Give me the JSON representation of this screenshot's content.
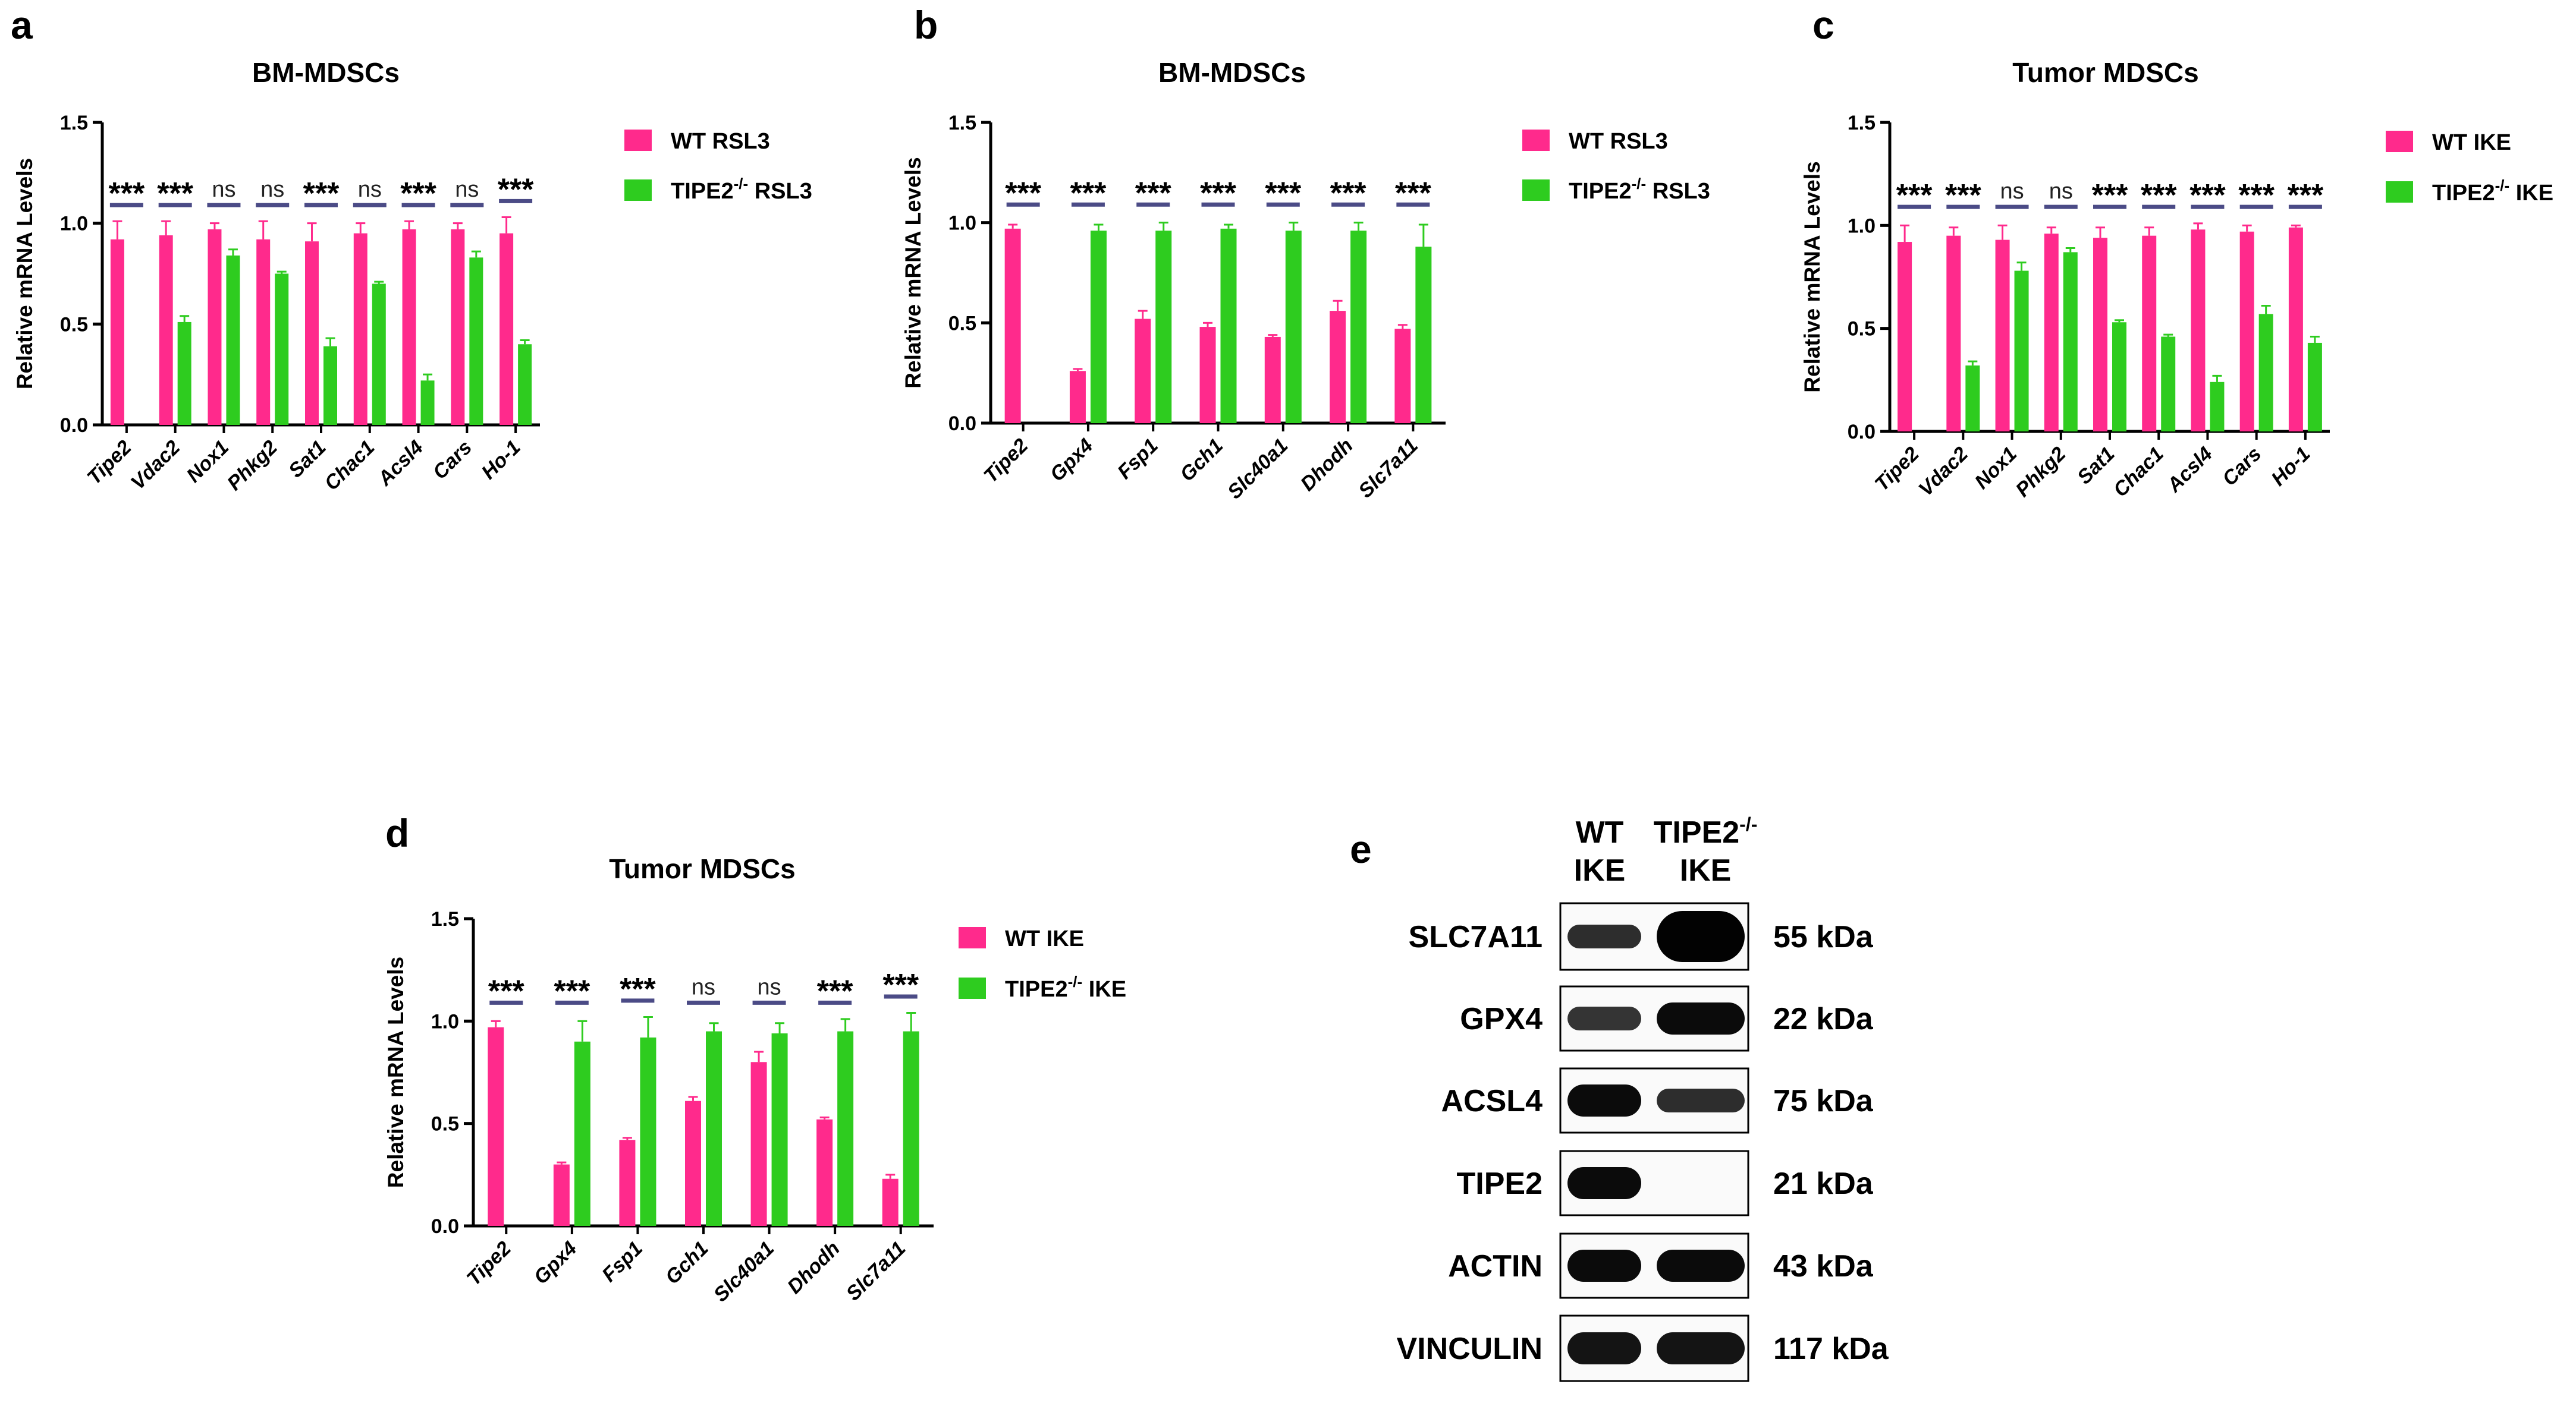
{
  "colors": {
    "wt": "#ff2a8c",
    "ko": "#2ecc1f",
    "sigline": "#4b4b86",
    "axis": "#000000"
  },
  "chart_data": [
    {
      "panel": "a",
      "type": "bar",
      "title": "BM-MDSCs",
      "ylabel": "Relative mRNA Levels",
      "ylim": [
        0,
        1.5
      ],
      "yticks": [
        "0.0",
        "0.5",
        "1.0",
        "1.5"
      ],
      "categories": [
        "Tipe2",
        "Vdac2",
        "Nox1",
        "Phkg2",
        "Sat1",
        "Chac1",
        "Acsl4",
        "Cars",
        "Ho-1"
      ],
      "series": [
        {
          "name": "WT RSL3",
          "label_main": "WT RSL3",
          "values": [
            0.92,
            0.94,
            0.97,
            0.92,
            0.91,
            0.95,
            0.97,
            0.97,
            0.95
          ],
          "errors": [
            0.09,
            0.07,
            0.03,
            0.09,
            0.09,
            0.05,
            0.04,
            0.03,
            0.08
          ]
        },
        {
          "name": "TIPE2-/- RSL3",
          "label_main": "TIPE2",
          "label_sup": "-/-",
          "label_tail": " RSL3",
          "values": [
            0.0,
            0.51,
            0.84,
            0.75,
            0.39,
            0.7,
            0.22,
            0.83,
            0.4
          ],
          "errors": [
            0.0,
            0.03,
            0.03,
            0.01,
            0.04,
            0.01,
            0.03,
            0.03,
            0.02
          ]
        }
      ],
      "significance": [
        "***",
        "***",
        "ns",
        "ns",
        "***",
        "ns",
        "***",
        "ns",
        "***"
      ]
    },
    {
      "panel": "b",
      "type": "bar",
      "title": "BM-MDSCs",
      "ylabel": "Relative mRNA Levels",
      "ylim": [
        0,
        1.5
      ],
      "yticks": [
        "0.0",
        "0.5",
        "1.0",
        "1.5"
      ],
      "categories": [
        "Tipe2",
        "Gpx4",
        "Fsp1",
        "Gch1",
        "Slc40a1",
        "Dhodh",
        "Slc7a11"
      ],
      "series": [
        {
          "name": "WT RSL3",
          "label_main": "WT RSL3",
          "values": [
            0.97,
            0.26,
            0.52,
            0.48,
            0.43,
            0.56,
            0.47
          ],
          "errors": [
            0.02,
            0.01,
            0.04,
            0.02,
            0.01,
            0.05,
            0.02
          ]
        },
        {
          "name": "TIPE2-/- RSL3",
          "label_main": "TIPE2",
          "label_sup": "-/-",
          "label_tail": " RSL3",
          "values": [
            0.0,
            0.96,
            0.96,
            0.97,
            0.96,
            0.96,
            0.88
          ],
          "errors": [
            0.0,
            0.03,
            0.04,
            0.02,
            0.04,
            0.04,
            0.11
          ]
        }
      ],
      "significance": [
        "***",
        "***",
        "***",
        "***",
        "***",
        "***",
        "***"
      ]
    },
    {
      "panel": "c",
      "type": "bar",
      "title": "Tumor MDSCs",
      "ylabel": "Relative mRNA Levels",
      "ylim": [
        0,
        1.5
      ],
      "yticks": [
        "0.0",
        "0.5",
        "1.0",
        "1.5"
      ],
      "categories": [
        "Tipe2",
        "Vdac2",
        "Nox1",
        "Phkg2",
        "Sat1",
        "Chac1",
        "Acsl4",
        "Cars",
        "Ho-1"
      ],
      "series": [
        {
          "name": "WT IKE",
          "label_main": "WT IKE",
          "values": [
            0.92,
            0.95,
            0.93,
            0.96,
            0.94,
            0.95,
            0.98,
            0.97,
            0.99
          ],
          "errors": [
            0.08,
            0.04,
            0.07,
            0.03,
            0.05,
            0.04,
            0.03,
            0.03,
            0.01
          ]
        },
        {
          "name": "TIPE2-/- IKE",
          "label_main": "TIPE2",
          "label_sup": "-/-",
          "label_tail": " IKE",
          "values": [
            0.0,
            0.32,
            0.78,
            0.87,
            0.53,
            0.46,
            0.24,
            0.57,
            0.43
          ],
          "errors": [
            0.0,
            0.02,
            0.04,
            0.02,
            0.01,
            0.01,
            0.03,
            0.04,
            0.03
          ]
        }
      ],
      "significance": [
        "***",
        "***",
        "ns",
        "ns",
        "***",
        "***",
        "***",
        "***",
        "***"
      ]
    },
    {
      "panel": "d",
      "type": "bar",
      "title": "Tumor MDSCs",
      "ylabel": "Relative mRNA Levels",
      "ylim": [
        0,
        1.5
      ],
      "yticks": [
        "0.0",
        "0.5",
        "1.0",
        "1.5"
      ],
      "categories": [
        "Tipe2",
        "Gpx4",
        "Fsp1",
        "Gch1",
        "Slc40a1",
        "Dhodh",
        "Slc7a11"
      ],
      "series": [
        {
          "name": "WT IKE",
          "label_main": "WT IKE",
          "values": [
            0.97,
            0.3,
            0.42,
            0.61,
            0.8,
            0.52,
            0.23
          ],
          "errors": [
            0.03,
            0.01,
            0.01,
            0.02,
            0.05,
            0.01,
            0.02
          ]
        },
        {
          "name": "TIPE2-/- IKE",
          "label_main": "TIPE2",
          "label_sup": "-/-",
          "label_tail": " IKE",
          "values": [
            0.0,
            0.9,
            0.92,
            0.95,
            0.94,
            0.95,
            0.95
          ],
          "errors": [
            0.0,
            0.1,
            0.1,
            0.04,
            0.05,
            0.06,
            0.09
          ]
        }
      ],
      "significance": [
        "***",
        "***",
        "***",
        "ns",
        "ns",
        "***",
        "***"
      ]
    }
  ],
  "western_blot": {
    "panel": "e",
    "lanes": [
      {
        "line1": "WT",
        "line2": "IKE"
      },
      {
        "line1": "TIPE2",
        "sup": "-/-",
        "line2": "IKE"
      }
    ],
    "rows": [
      {
        "protein": "SLC7A11",
        "kda": "55 kDa",
        "intensity": [
          0.75,
          1.0
        ]
      },
      {
        "protein": "GPX4",
        "kda": "22 kDa",
        "intensity": [
          0.7,
          0.95
        ]
      },
      {
        "protein": "ACSL4",
        "kda": "75 kDa",
        "intensity": [
          0.95,
          0.75
        ]
      },
      {
        "protein": "TIPE2",
        "kda": "21 kDa",
        "intensity": [
          0.95,
          0.0
        ]
      },
      {
        "protein": "ACTIN",
        "kda": "43 kDa",
        "intensity": [
          0.95,
          0.95
        ]
      },
      {
        "protein": "VINCULIN",
        "kda": "117 kDa",
        "intensity": [
          0.9,
          0.9
        ]
      }
    ]
  }
}
